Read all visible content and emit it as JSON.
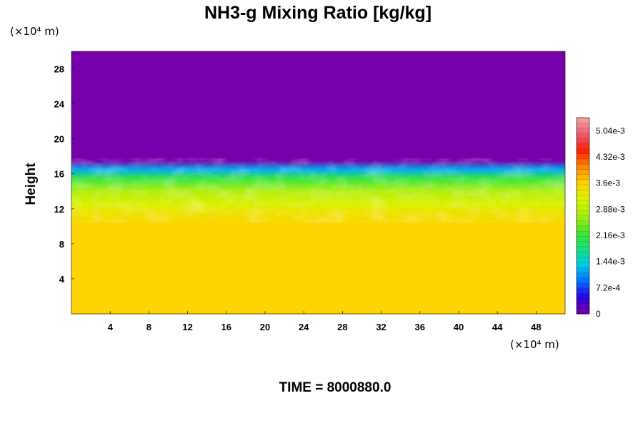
{
  "chart_data": {
    "type": "heatmap",
    "title": "NH3-g Mixing Ratio [kg/kg]",
    "ylabel": "Height",
    "x_unit": "(×10⁴ m)",
    "y_unit": "(×10⁴ m)",
    "time_label": "TIME = 8000880.0",
    "xlim": [
      0,
      51
    ],
    "ylim": [
      0,
      30
    ],
    "x_ticks": [
      4,
      8,
      12,
      16,
      20,
      24,
      28,
      32,
      36,
      40,
      44,
      48
    ],
    "x_tick_labels": [
      "4",
      "8",
      "12",
      "16",
      "20",
      "24",
      "28",
      "32",
      "36",
      "40",
      "44",
      "48"
    ],
    "y_ticks": [
      4,
      8,
      12,
      16,
      20,
      24,
      28
    ],
    "y_tick_labels": [
      "4",
      "8",
      "12",
      "16",
      "20",
      "24",
      "28"
    ],
    "colorbar": {
      "min": 0,
      "max": 0.0054,
      "tick_values": [
        0,
        0.00072,
        0.00144,
        0.00216,
        0.00288,
        0.0036,
        0.00432,
        0.00504
      ],
      "tick_labels": [
        "0",
        "7.2e-4",
        "1.44e-3",
        "2.16e-3",
        "2.88e-3",
        "3.6e-3",
        "4.32e-3",
        "5.04e-3"
      ],
      "stops": [
        "#7a00a6",
        "#2a00e0",
        "#0070ff",
        "#00c8e8",
        "#14e07a",
        "#46e62a",
        "#a8ec14",
        "#d7f400",
        "#ffd400",
        "#ff8a00",
        "#ff1e00",
        "#ee5d72",
        "#f4a3a3"
      ]
    },
    "profile": {
      "heights": [
        0,
        10,
        11.5,
        12.5,
        14,
        15.5,
        16.5,
        17.5,
        30
      ],
      "values": [
        0.0036,
        0.0036,
        0.0034,
        0.0032,
        0.0028,
        0.0021,
        0.0012,
        2e-05,
        2e-05
      ]
    }
  }
}
